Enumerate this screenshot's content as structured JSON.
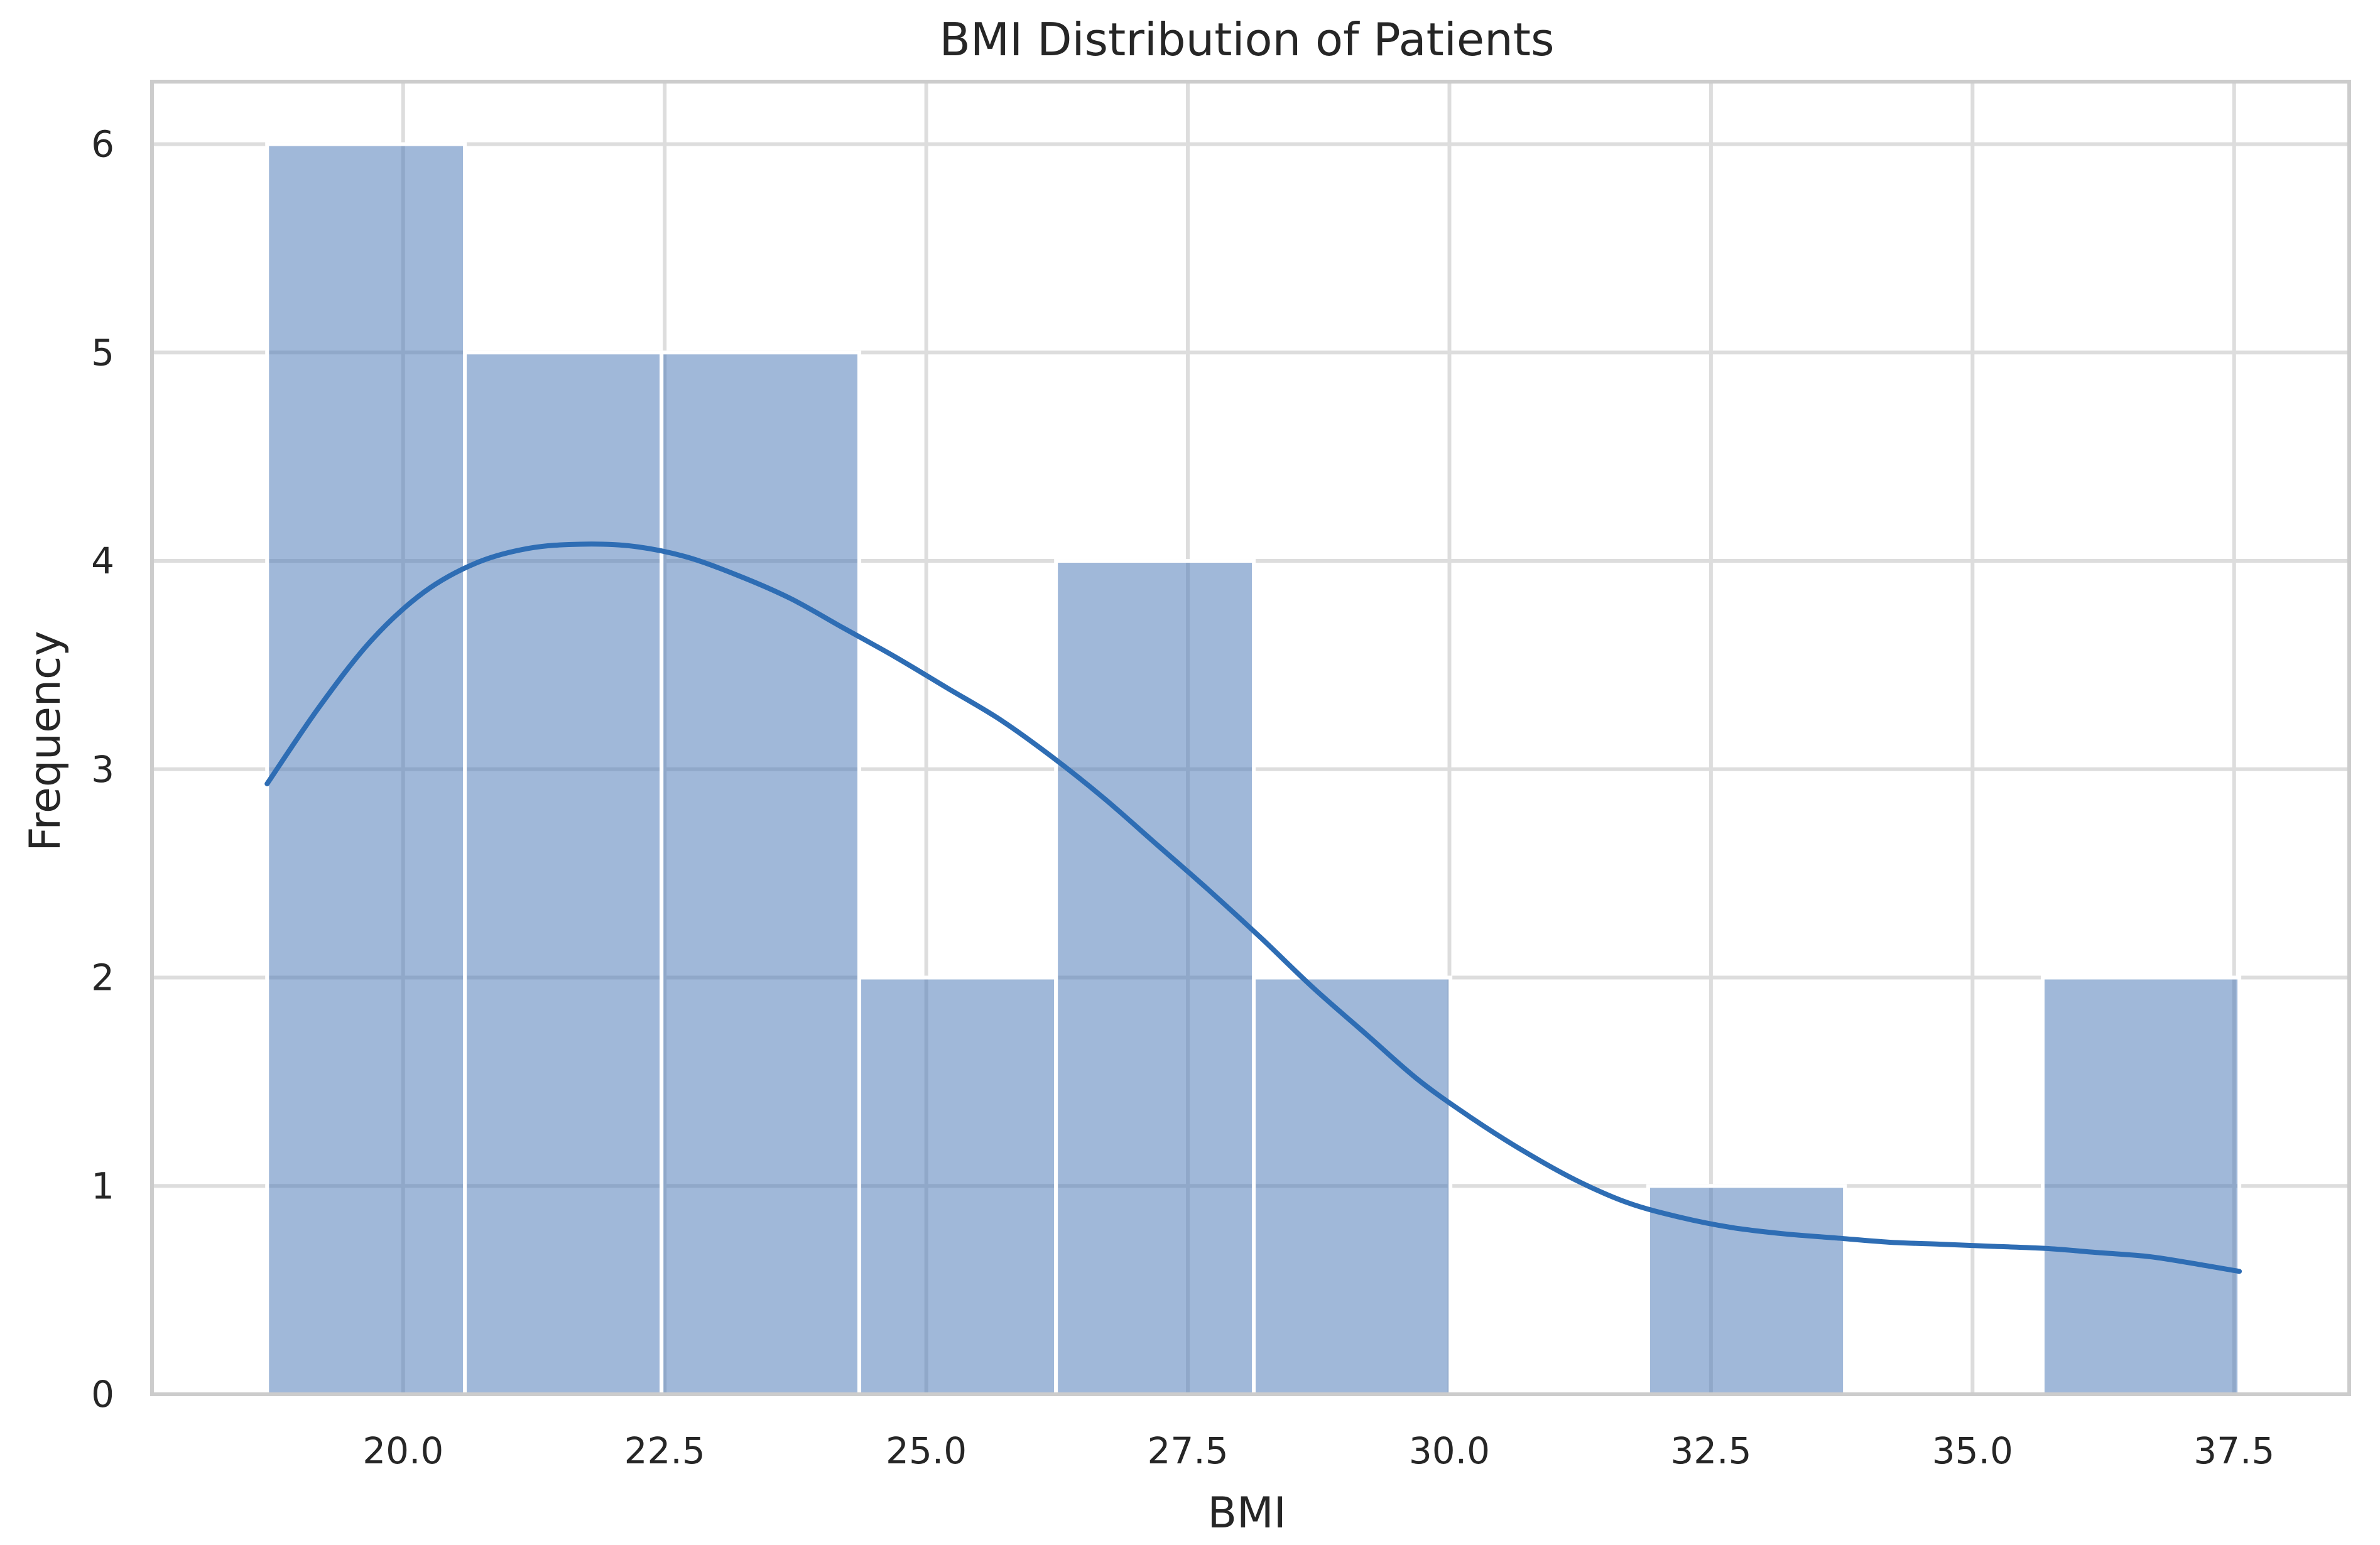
{
  "chart_data": {
    "type": "bar",
    "subtype": "histogram",
    "title": "BMI Distribution of Patients",
    "xlabel": "BMI",
    "ylabel": "Frequency",
    "xlim": [
      17.6,
      38.6
    ],
    "ylim": [
      0,
      6.3
    ],
    "grid": true,
    "x_ticks": [
      20.0,
      22.5,
      25.0,
      27.5,
      30.0,
      32.5,
      35.0,
      37.5
    ],
    "x_tick_labels": [
      "20.0",
      "22.5",
      "25.0",
      "27.5",
      "30.0",
      "32.5",
      "35.0",
      "37.5"
    ],
    "y_ticks": [
      0,
      1,
      2,
      3,
      4,
      5,
      6
    ],
    "y_tick_labels": [
      "0",
      "1",
      "2",
      "3",
      "4",
      "5",
      "6"
    ],
    "bin_edges": [
      18.7,
      20.59,
      22.47,
      24.36,
      26.24,
      28.13,
      30.01,
      31.9,
      33.78,
      35.67,
      37.55
    ],
    "values": [
      6,
      5,
      5,
      2,
      4,
      2,
      0,
      1,
      0,
      2
    ],
    "kde_x": [
      18.7,
      19.2,
      19.7,
      20.2,
      20.7,
      21.2,
      21.7,
      22.2,
      22.7,
      23.2,
      23.7,
      24.2,
      24.7,
      25.2,
      25.7,
      26.2,
      26.7,
      27.2,
      27.7,
      28.2,
      28.7,
      29.2,
      29.7,
      30.2,
      30.7,
      31.2,
      31.7,
      32.2,
      32.7,
      33.2,
      33.7,
      34.2,
      34.7,
      35.2,
      35.7,
      36.2,
      36.7,
      37.2,
      37.55
    ],
    "kde_y": [
      2.93,
      3.3,
      3.62,
      3.85,
      3.99,
      4.06,
      4.08,
      4.07,
      4.02,
      3.93,
      3.82,
      3.68,
      3.54,
      3.39,
      3.24,
      3.06,
      2.86,
      2.64,
      2.42,
      2.19,
      1.95,
      1.73,
      1.51,
      1.33,
      1.17,
      1.03,
      0.92,
      0.85,
      0.8,
      0.77,
      0.75,
      0.73,
      0.72,
      0.71,
      0.7,
      0.68,
      0.66,
      0.62,
      0.59
    ],
    "colors": {
      "bar": "#4c78b8",
      "kde": "#2e6db4",
      "grid": "#dddddd",
      "frame": "#cccccc"
    }
  }
}
